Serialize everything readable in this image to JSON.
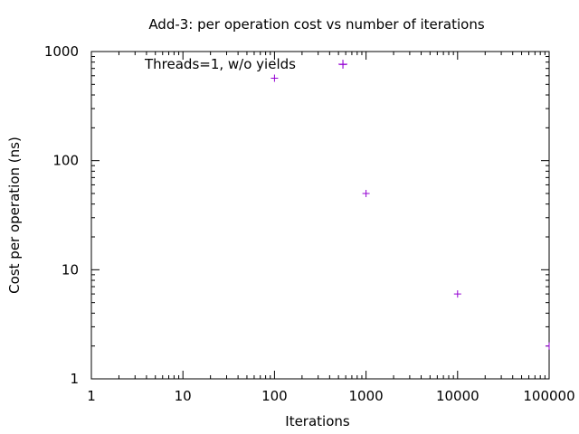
{
  "chart_data": {
    "type": "scatter",
    "title": "Add-3: per operation cost vs number of iterations",
    "xlabel": "Iterations",
    "ylabel": "Cost per operation (ns)",
    "x_scale": "log",
    "y_scale": "log",
    "xlim": [
      1,
      100000
    ],
    "ylim": [
      1,
      1000
    ],
    "x_ticks": [
      1,
      10,
      100,
      1000,
      10000,
      100000
    ],
    "x_tick_labels": [
      "1",
      "10",
      "100",
      "1000",
      "10000",
      "100000"
    ],
    "y_ticks": [
      1,
      10,
      100,
      1000
    ],
    "y_tick_labels": [
      "1",
      "10",
      "100",
      "1000"
    ],
    "grid": false,
    "legend_position": "top-left",
    "series": [
      {
        "name": "Threads=1, w/o yields",
        "color": "#9400d3",
        "marker": "plus",
        "points": [
          {
            "x": 100,
            "y": 570
          },
          {
            "x": 560,
            "y": 760
          },
          {
            "x": 1000,
            "y": 50
          },
          {
            "x": 10000,
            "y": 6
          },
          {
            "x": 100000,
            "y": 2
          }
        ]
      }
    ]
  }
}
